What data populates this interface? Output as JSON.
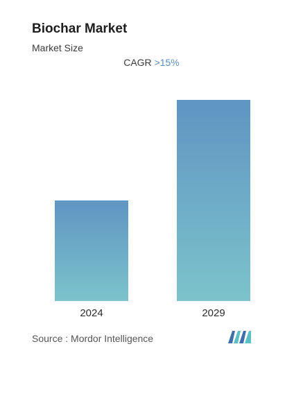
{
  "header": {
    "title": "Biochar Market",
    "subtitle": "Market Size"
  },
  "cagr": {
    "label": "CAGR",
    "value": ">15%"
  },
  "chart_data": {
    "type": "bar",
    "categories": [
      "2024",
      "2029"
    ],
    "values": [
      1.0,
      2.0
    ],
    "value_note_unit": "relative",
    "xlabel": "",
    "ylabel": "",
    "grid": false,
    "bar_colors": {
      "top": "#5f95c2",
      "bottom": "#7cc3cb"
    }
  },
  "footer": {
    "source": "Source :  Mordor Intelligence",
    "logo_icon": "mordor-intelligence-logo-icon",
    "logo_colors": [
      "#3f6fa8",
      "#5bbfc6"
    ]
  }
}
